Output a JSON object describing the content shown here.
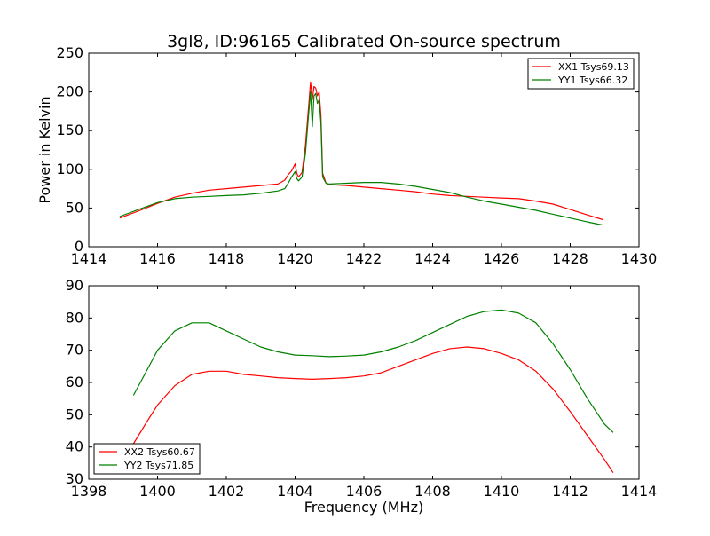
{
  "chart_data": [
    {
      "type": "line",
      "title": "3gl8, ID:96165 Calibrated On-source spectrum",
      "xlabel": "",
      "ylabel": "Power in Kelvin",
      "xlim": [
        1414,
        1430
      ],
      "ylim": [
        0,
        250
      ],
      "xticks": [
        1414,
        1416,
        1418,
        1420,
        1422,
        1424,
        1426,
        1428,
        1430
      ],
      "yticks": [
        0,
        50,
        100,
        150,
        200,
        250
      ],
      "grid": false,
      "legend": "top-right",
      "series": [
        {
          "name": "XX1 Tsys69.13",
          "color": "#ff0000",
          "x": [
            1414.9,
            1415.5,
            1416.0,
            1416.5,
            1417.0,
            1417.5,
            1418.0,
            1418.5,
            1419.0,
            1419.5,
            1419.7,
            1419.8,
            1419.9,
            1420.0,
            1420.05,
            1420.1,
            1420.2,
            1420.3,
            1420.4,
            1420.45,
            1420.5,
            1420.55,
            1420.6,
            1420.65,
            1420.7,
            1420.75,
            1420.8,
            1420.9,
            1421.0,
            1421.5,
            1422.0,
            1422.5,
            1423.0,
            1423.5,
            1424.0,
            1424.5,
            1425.0,
            1425.5,
            1426.0,
            1426.5,
            1427.0,
            1427.5,
            1428.0,
            1428.5,
            1428.95
          ],
          "y": [
            37,
            47,
            56,
            64,
            69,
            73,
            75,
            77,
            79,
            81,
            86,
            93,
            98,
            107,
            95,
            90,
            96,
            130,
            185,
            213,
            190,
            207,
            205,
            195,
            200,
            170,
            95,
            82,
            80,
            79,
            77,
            75,
            73,
            71,
            68,
            66,
            65,
            64,
            63,
            62,
            59,
            55,
            48,
            41,
            35
          ]
        },
        {
          "name": "YY1 Tsys66.32",
          "color": "#008000",
          "x": [
            1414.9,
            1415.5,
            1416.0,
            1416.5,
            1417.0,
            1417.5,
            1418.0,
            1418.5,
            1419.0,
            1419.5,
            1419.7,
            1419.8,
            1419.9,
            1420.0,
            1420.05,
            1420.1,
            1420.2,
            1420.3,
            1420.4,
            1420.45,
            1420.5,
            1420.55,
            1420.6,
            1420.65,
            1420.7,
            1420.75,
            1420.8,
            1420.9,
            1421.0,
            1421.5,
            1422.0,
            1422.5,
            1423.0,
            1423.5,
            1424.0,
            1424.5,
            1425.0,
            1425.5,
            1426.0,
            1426.5,
            1427.0,
            1427.5,
            1428.0,
            1428.5,
            1428.95
          ],
          "y": [
            39,
            49,
            57,
            62,
            64,
            65,
            66,
            67,
            69,
            72,
            75,
            82,
            90,
            97,
            88,
            85,
            90,
            120,
            175,
            200,
            155,
            195,
            198,
            185,
            190,
            160,
            90,
            82,
            81,
            82,
            83,
            83,
            81,
            78,
            74,
            70,
            64,
            59,
            55,
            51,
            47,
            42,
            37,
            32,
            28
          ]
        }
      ]
    },
    {
      "type": "line",
      "title": "",
      "xlabel": "Frequency (MHz)",
      "ylabel": "",
      "xlim": [
        1398,
        1414
      ],
      "ylim": [
        30,
        90
      ],
      "xticks": [
        1398,
        1400,
        1402,
        1404,
        1406,
        1408,
        1410,
        1412,
        1414
      ],
      "yticks": [
        30,
        40,
        50,
        60,
        70,
        80,
        90
      ],
      "grid": false,
      "legend": "bottom-left",
      "series": [
        {
          "name": "XX2 Tsys60.67",
          "color": "#ff0000",
          "x": [
            1399.3,
            1399.7,
            1400.0,
            1400.5,
            1401.0,
            1401.5,
            1402.0,
            1402.5,
            1403.0,
            1403.5,
            1404.0,
            1404.5,
            1405.0,
            1405.5,
            1406.0,
            1406.5,
            1407.0,
            1407.5,
            1408.0,
            1408.5,
            1409.0,
            1409.5,
            1410.0,
            1410.5,
            1411.0,
            1411.5,
            1412.0,
            1412.5,
            1413.0,
            1413.25
          ],
          "y": [
            41,
            48,
            53,
            59,
            62.5,
            63.5,
            63.5,
            62.5,
            62,
            61.5,
            61.2,
            61,
            61.2,
            61.5,
            62,
            63,
            65,
            67,
            69,
            70.5,
            71,
            70.5,
            69,
            67,
            63.5,
            58,
            51,
            43.5,
            36,
            32
          ]
        },
        {
          "name": "YY2 Tsys71.85",
          "color": "#008000",
          "x": [
            1399.3,
            1399.7,
            1400.0,
            1400.5,
            1401.0,
            1401.5,
            1402.0,
            1402.5,
            1403.0,
            1403.5,
            1404.0,
            1404.5,
            1405.0,
            1405.5,
            1406.0,
            1406.5,
            1407.0,
            1407.5,
            1408.0,
            1408.5,
            1409.0,
            1409.5,
            1410.0,
            1410.5,
            1411.0,
            1411.5,
            1412.0,
            1412.5,
            1413.0,
            1413.25
          ],
          "y": [
            56,
            64,
            70,
            76,
            78.5,
            78.5,
            76,
            73.5,
            71,
            69.5,
            68.5,
            68.3,
            68,
            68.2,
            68.5,
            69.5,
            71,
            73,
            75.5,
            78,
            80.5,
            82,
            82.5,
            81.5,
            78.5,
            72,
            64,
            55,
            47,
            44.5
          ]
        }
      ]
    }
  ]
}
